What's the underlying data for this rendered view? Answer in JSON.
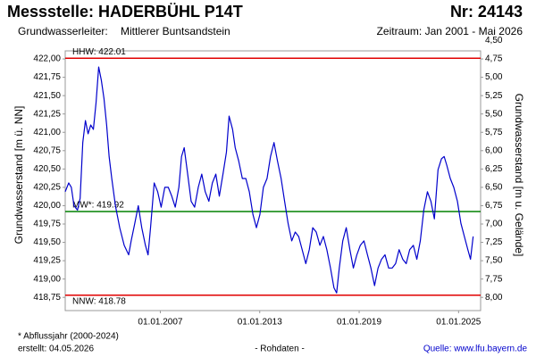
{
  "chart_data": {
    "type": "line",
    "title": "Messstelle: HADERBÜHL P14T",
    "number": "Nr: 24143",
    "aquifer_label": "Grundwasserleiter:",
    "aquifer": "Mittlerer Buntsandstein",
    "period": "Zeitraum: Jan 2001 - Mai 2026",
    "ylabel": "Grundwasserstand [m ü. NN]",
    "y2label": "Grundwasserstand [m u. Gelände]",
    "footnote": "* Abflussjahr (2000-2024)",
    "created": "erstellt:  04.05.2026",
    "data_note": "- Rohdaten -",
    "source": "Quelle: www.lfu.bayern.de",
    "color": "#0000cc",
    "xlim": [
      2001.26,
      2026.33
    ],
    "xticks": [
      {
        "value": 2007,
        "label": "01.01.2007"
      },
      {
        "value": 2013,
        "label": "01.01.2013"
      },
      {
        "value": 2019,
        "label": "01.01.2019"
      },
      {
        "value": 2025,
        "label": "01.01.2025"
      }
    ],
    "ylim": [
      418.57,
      422.11
    ],
    "yticks": [
      {
        "value": 418.75,
        "label": "418,75"
      },
      {
        "value": 419,
        "label": "419,00"
      },
      {
        "value": 419.25,
        "label": "419,25"
      },
      {
        "value": 419.5,
        "label": "419,50"
      },
      {
        "value": 419.75,
        "label": "419,75"
      },
      {
        "value": 420,
        "label": "420,00"
      },
      {
        "value": 420.25,
        "label": "420,25"
      },
      {
        "value": 420.5,
        "label": "420,50"
      },
      {
        "value": 420.75,
        "label": "420,75"
      },
      {
        "value": 421,
        "label": "421,00"
      },
      {
        "value": 421.25,
        "label": "421,25"
      },
      {
        "value": 421.5,
        "label": "421,50"
      },
      {
        "value": 421.75,
        "label": "421,75"
      },
      {
        "value": 422,
        "label": "422,00"
      }
    ],
    "y2lim": [
      8.18,
      4.64
    ],
    "y2ticks": [
      {
        "value": 4.5,
        "label": "4,50"
      },
      {
        "value": 4.75,
        "label": "4,75"
      },
      {
        "value": 5,
        "label": "5,00"
      },
      {
        "value": 5.25,
        "label": "5,25"
      },
      {
        "value": 5.5,
        "label": "5,50"
      },
      {
        "value": 5.75,
        "label": "5,75"
      },
      {
        "value": 6,
        "label": "6,00"
      },
      {
        "value": 6.25,
        "label": "6,25"
      },
      {
        "value": 6.5,
        "label": "6,50"
      },
      {
        "value": 6.75,
        "label": "6,75"
      },
      {
        "value": 7,
        "label": "7,00"
      },
      {
        "value": 7.25,
        "label": "7,25"
      },
      {
        "value": 7.5,
        "label": "7,50"
      },
      {
        "value": 7.75,
        "label": "7,75"
      },
      {
        "value": 8,
        "label": "8,00"
      }
    ],
    "reference_lines": [
      {
        "label": "HHW: 422.01",
        "value": 422.01,
        "color": "#e00000"
      },
      {
        "label": "MW*: 419.92",
        "value": 419.92,
        "color": "#008000"
      },
      {
        "label": "NNW: 418.78",
        "value": 418.78,
        "color": "#e00000"
      }
    ],
    "x": [
      2001.26,
      2001.47,
      2001.63,
      2001.79,
      2002.0,
      2002.16,
      2002.32,
      2002.48,
      2002.64,
      2002.8,
      2002.96,
      2003.12,
      2003.28,
      2003.44,
      2003.6,
      2003.76,
      2003.91,
      2004.07,
      2004.29,
      2004.55,
      2004.82,
      2005.09,
      2005.24,
      2005.46,
      2005.67,
      2005.88,
      2006.1,
      2006.26,
      2006.41,
      2006.63,
      2006.84,
      2007.05,
      2007.27,
      2007.48,
      2007.69,
      2007.9,
      2008.12,
      2008.28,
      2008.44,
      2008.65,
      2008.86,
      2009.07,
      2009.29,
      2009.5,
      2009.71,
      2009.93,
      2010.14,
      2010.35,
      2010.56,
      2010.78,
      2010.99,
      2011.15,
      2011.36,
      2011.52,
      2011.73,
      2011.95,
      2012.16,
      2012.37,
      2012.59,
      2012.8,
      2013.01,
      2013.22,
      2013.44,
      2013.65,
      2013.86,
      2014.07,
      2014.29,
      2014.5,
      2014.71,
      2014.93,
      2015.14,
      2015.35,
      2015.56,
      2015.78,
      2015.99,
      2016.2,
      2016.41,
      2016.63,
      2016.84,
      2017.05,
      2017.27,
      2017.48,
      2017.64,
      2017.8,
      2018.01,
      2018.22,
      2018.44,
      2018.65,
      2018.86,
      2019.07,
      2019.29,
      2019.5,
      2019.71,
      2019.93,
      2020.14,
      2020.35,
      2020.56,
      2020.78,
      2020.99,
      2021.2,
      2021.41,
      2021.63,
      2021.84,
      2022.05,
      2022.27,
      2022.48,
      2022.69,
      2022.9,
      2023.12,
      2023.33,
      2023.54,
      2023.76,
      2023.97,
      2024.13,
      2024.29,
      2024.5,
      2024.71,
      2024.93,
      2025.14,
      2025.35,
      2025.56,
      2025.72,
      2025.88
    ],
    "values": [
      420.19,
      420.31,
      420.25,
      420.0,
      419.94,
      420.1,
      420.86,
      421.16,
      420.98,
      421.1,
      421.04,
      421.4,
      421.89,
      421.71,
      421.46,
      421.1,
      420.67,
      420.37,
      420.0,
      419.7,
      419.46,
      419.33,
      419.52,
      419.76,
      420.0,
      419.7,
      419.46,
      419.33,
      419.7,
      420.31,
      420.19,
      419.98,
      420.25,
      420.25,
      420.13,
      419.98,
      420.25,
      420.67,
      420.79,
      420.43,
      420.06,
      419.98,
      420.25,
      420.43,
      420.19,
      420.06,
      420.31,
      420.43,
      420.13,
      420.43,
      420.73,
      421.22,
      421.04,
      420.79,
      420.61,
      420.37,
      420.37,
      420.19,
      419.88,
      419.7,
      419.88,
      420.25,
      420.37,
      420.67,
      420.86,
      420.61,
      420.37,
      420.06,
      419.76,
      419.52,
      419.64,
      419.58,
      419.4,
      419.21,
      419.4,
      419.7,
      419.64,
      419.46,
      419.58,
      419.4,
      419.15,
      418.88,
      418.81,
      419.15,
      419.52,
      419.7,
      419.4,
      419.15,
      419.33,
      419.46,
      419.52,
      419.33,
      419.15,
      418.91,
      419.15,
      419.27,
      419.33,
      419.15,
      419.15,
      419.21,
      419.4,
      419.27,
      419.21,
      419.4,
      419.46,
      419.27,
      419.52,
      419.94,
      420.19,
      420.06,
      419.82,
      420.49,
      420.64,
      420.67,
      420.55,
      420.37,
      420.25,
      420.06,
      419.76,
      419.58,
      419.4,
      419.27,
      419.58
    ]
  }
}
